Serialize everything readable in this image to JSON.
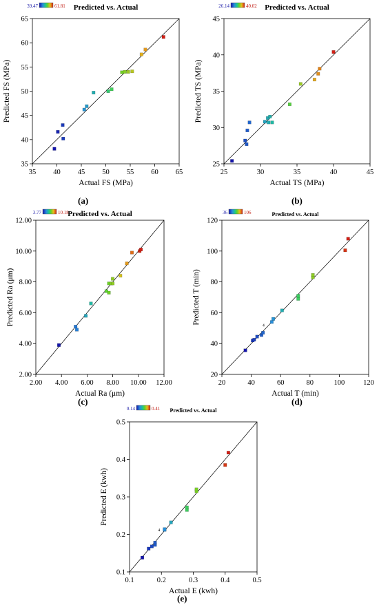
{
  "chart_data": [
    {
      "type": "scatter",
      "panel_label": "(a)",
      "title": "Predicted vs. Actual",
      "xlabel": "Actual FS (MPa)",
      "ylabel": "Predicted FS (MPa)",
      "xlim": [
        35,
        65
      ],
      "ylim": [
        35,
        65
      ],
      "xticks": [
        "35",
        "40",
        "45",
        "50",
        "55",
        "60",
        "65"
      ],
      "yticks": [
        "35",
        "40",
        "45",
        "50",
        "55",
        "60",
        "65"
      ],
      "color_range": {
        "min": "39.47",
        "max": "61.81"
      },
      "points": [
        {
          "x": 39.5,
          "y": 38.1
        },
        {
          "x": 40.2,
          "y": 41.6
        },
        {
          "x": 41.2,
          "y": 43.0
        },
        {
          "x": 41.3,
          "y": 40.2
        },
        {
          "x": 45.6,
          "y": 46.2
        },
        {
          "x": 46.1,
          "y": 46.9
        },
        {
          "x": 47.5,
          "y": 49.7
        },
        {
          "x": 50.5,
          "y": 50.0
        },
        {
          "x": 51.2,
          "y": 50.4
        },
        {
          "x": 53.3,
          "y": 53.9
        },
        {
          "x": 53.9,
          "y": 54.0
        },
        {
          "x": 54.6,
          "y": 54.0
        },
        {
          "x": 55.4,
          "y": 54.1
        },
        {
          "x": 57.3,
          "y": 57.6
        },
        {
          "x": 58.1,
          "y": 58.6
        },
        {
          "x": 61.8,
          "y": 61.2
        }
      ]
    },
    {
      "type": "scatter",
      "panel_label": "(b)",
      "title": "Predicted vs. Actual",
      "xlabel": "Actual TS (MPa)",
      "ylabel": "Predicted TS (MPa)",
      "xlim": [
        25,
        45
      ],
      "ylim": [
        25,
        45
      ],
      "xticks": [
        "25",
        "30",
        "35",
        "40",
        "45"
      ],
      "yticks": [
        "25",
        "30",
        "35",
        "40",
        "45"
      ],
      "color_range": {
        "min": "26.14",
        "max": "40.02"
      },
      "points": [
        {
          "x": 26.1,
          "y": 25.4
        },
        {
          "x": 27.9,
          "y": 28.2
        },
        {
          "x": 28.1,
          "y": 27.7
        },
        {
          "x": 28.2,
          "y": 29.6
        },
        {
          "x": 28.5,
          "y": 30.7
        },
        {
          "x": 30.6,
          "y": 30.8
        },
        {
          "x": 31.0,
          "y": 31.3
        },
        {
          "x": 31.1,
          "y": 30.7
        },
        {
          "x": 31.3,
          "y": 31.5
        },
        {
          "x": 31.6,
          "y": 30.7
        },
        {
          "x": 34.0,
          "y": 33.2
        },
        {
          "x": 35.5,
          "y": 36.0
        },
        {
          "x": 37.4,
          "y": 36.6
        },
        {
          "x": 37.9,
          "y": 37.4
        },
        {
          "x": 38.1,
          "y": 38.1
        },
        {
          "x": 40.0,
          "y": 40.4
        }
      ]
    },
    {
      "type": "scatter",
      "panel_label": "(c)",
      "title": "Predicted vs. Actual",
      "xlabel": "Actual Ra (μm)",
      "ylabel": "Predicted Ra (μm)",
      "xlim": [
        2,
        12
      ],
      "ylim": [
        2,
        12
      ],
      "xticks": [
        "2.00",
        "4.00",
        "6.00",
        "8.00",
        "10.00",
        "12.00"
      ],
      "yticks": [
        "2.00",
        "4.00",
        "6.00",
        "8.00",
        "10.00",
        "12.00"
      ],
      "color_range": {
        "min": "3.77",
        "max": "10.18"
      },
      "points": [
        {
          "x": 3.8,
          "y": 3.9
        },
        {
          "x": 5.1,
          "y": 5.1
        },
        {
          "x": 5.2,
          "y": 4.9
        },
        {
          "x": 5.9,
          "y": 5.8
        },
        {
          "x": 6.3,
          "y": 6.6
        },
        {
          "x": 7.5,
          "y": 7.4
        },
        {
          "x": 7.7,
          "y": 7.3
        },
        {
          "x": 7.7,
          "y": 7.9
        },
        {
          "x": 7.9,
          "y": 7.9
        },
        {
          "x": 8.0,
          "y": 7.9
        },
        {
          "x": 8.0,
          "y": 8.2
        },
        {
          "x": 8.6,
          "y": 8.4
        },
        {
          "x": 9.1,
          "y": 9.2
        },
        {
          "x": 9.5,
          "y": 9.9
        },
        {
          "x": 10.1,
          "y": 10.0
        },
        {
          "x": 10.2,
          "y": 10.1
        }
      ]
    },
    {
      "type": "scatter",
      "panel_label": "(d)",
      "title": "Predicted vs. Actual",
      "xlabel": "Actual T (min)",
      "ylabel": "Predicted T (min)",
      "xlim": [
        20,
        120
      ],
      "ylim": [
        20,
        120
      ],
      "xticks": [
        "20",
        "40",
        "60",
        "80",
        "100",
        "120"
      ],
      "yticks": [
        "20",
        "40",
        "60",
        "80",
        "100",
        "120"
      ],
      "color_range": {
        "min": "36",
        "max": "106"
      },
      "annotation": "4",
      "points": [
        {
          "x": 36,
          "y": 35.6
        },
        {
          "x": 41,
          "y": 42
        },
        {
          "x": 42,
          "y": 42.5
        },
        {
          "x": 44,
          "y": 44.5
        },
        {
          "x": 47,
          "y": 45.5
        },
        {
          "x": 48,
          "y": 47
        },
        {
          "x": 54,
          "y": 54
        },
        {
          "x": 55,
          "y": 56
        },
        {
          "x": 61,
          "y": 61.5
        },
        {
          "x": 72,
          "y": 69
        },
        {
          "x": 72,
          "y": 71
        },
        {
          "x": 82,
          "y": 83
        },
        {
          "x": 82,
          "y": 84.5
        },
        {
          "x": 104,
          "y": 100.5
        },
        {
          "x": 106,
          "y": 108
        }
      ]
    },
    {
      "type": "scatter",
      "panel_label": "(e)",
      "title": "Predicted vs. Actual",
      "xlabel": "Actual E (kwh)",
      "ylabel": "Predicted E (kwh)",
      "xlim": [
        0.1,
        0.5
      ],
      "ylim": [
        0.1,
        0.5
      ],
      "xticks": [
        "0.1",
        "0.2",
        "0.3",
        "0.4",
        "0.5"
      ],
      "yticks": [
        "0.1",
        "0.2",
        "0.3",
        "0.4",
        "0.5"
      ],
      "color_range": {
        "min": "0.14",
        "max": "0.41"
      },
      "annotation": "4",
      "points": [
        {
          "x": 0.14,
          "y": 0.138
        },
        {
          "x": 0.16,
          "y": 0.162
        },
        {
          "x": 0.17,
          "y": 0.168
        },
        {
          "x": 0.18,
          "y": 0.172
        },
        {
          "x": 0.18,
          "y": 0.178
        },
        {
          "x": 0.21,
          "y": 0.212
        },
        {
          "x": 0.21,
          "y": 0.214
        },
        {
          "x": 0.23,
          "y": 0.232
        },
        {
          "x": 0.28,
          "y": 0.265
        },
        {
          "x": 0.28,
          "y": 0.272
        },
        {
          "x": 0.31,
          "y": 0.315
        },
        {
          "x": 0.31,
          "y": 0.32
        },
        {
          "x": 0.4,
          "y": 0.385
        },
        {
          "x": 0.41,
          "y": 0.418
        }
      ]
    }
  ]
}
